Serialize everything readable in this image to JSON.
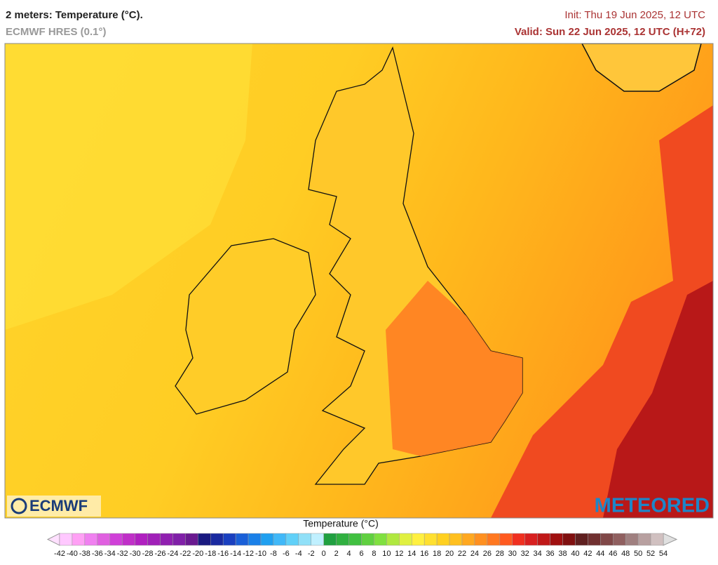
{
  "header": {
    "title": "2 meters: Temperature (°C).",
    "model": "ECMWF HRES (0.1°)",
    "init": "Init: Thu 19 Jun 2025, 12 UTC",
    "valid": "Valid: Sun 22 Jun 2025, 12 UTC (H+72)"
  },
  "logos": {
    "left": "ECMWF",
    "right": "METEORED"
  },
  "legend": {
    "title": "Temperature (°C)",
    "ticks": [
      -42,
      -40,
      -38,
      -36,
      -34,
      -32,
      -30,
      -28,
      -26,
      -24,
      -22,
      -20,
      -18,
      -16,
      -14,
      -12,
      -10,
      -8,
      -6,
      -4,
      -2,
      0,
      2,
      4,
      6,
      8,
      10,
      12,
      14,
      16,
      18,
      20,
      22,
      24,
      26,
      28,
      30,
      32,
      34,
      36,
      38,
      40,
      42,
      44,
      46,
      48,
      50,
      52,
      54
    ],
    "colors": [
      "#ffc8ff",
      "#ffa0f5",
      "#f080f0",
      "#e060e0",
      "#d040d8",
      "#c030c8",
      "#b020c0",
      "#a020b8",
      "#9020b0",
      "#8020a8",
      "#6a1a90",
      "#1a1a80",
      "#1a2aa0",
      "#1a40c0",
      "#1a60d8",
      "#1a80e8",
      "#20a0f0",
      "#40b8f8",
      "#60d0f8",
      "#90e0f8",
      "#c0f0ff",
      "#20a040",
      "#30b040",
      "#40c040",
      "#60d040",
      "#80e040",
      "#b0e840",
      "#e0f040",
      "#fff040",
      "#ffe030",
      "#ffd020",
      "#ffc020",
      "#ffa820",
      "#ff9020",
      "#ff7820",
      "#ff5a20",
      "#f03020",
      "#d82020",
      "#c01818",
      "#a01010",
      "#801010",
      "#602020",
      "#703030",
      "#804848",
      "#906060",
      "#a08080",
      "#b8a0a0",
      "#d0c0c0"
    ],
    "under_color": "#ffe0ff",
    "over_color": "#e0e0e0"
  }
}
